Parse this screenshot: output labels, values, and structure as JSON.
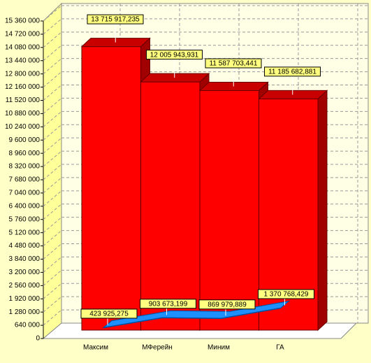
{
  "chart_data": {
    "type": "bar",
    "categories": [
      "Максим",
      "МФерейн",
      "Миним",
      "ГА"
    ],
    "series": [
      {
        "type": "bar",
        "color": "#ff0000",
        "values": [
          13715917.235,
          12005943.931,
          11587703.441,
          11185682.881
        ],
        "value_labels": [
          "13 715 917,235",
          "12 005 943,931",
          "11 587 703,441",
          "11 185 682,881"
        ]
      },
      {
        "type": "line",
        "color": "#1e8fff",
        "values": [
          423925.275,
          903673.199,
          869979.889,
          1370768.429
        ],
        "value_labels": [
          "423 925,275",
          "903 673,199",
          "869 979,889",
          "1 370 768,429"
        ]
      }
    ],
    "ylim": [
      0,
      15360000
    ],
    "yticks": [
      0,
      {
        "value": 640000,
        "label": "640 000"
      },
      {
        "value": 1280000,
        "label": "1 280 000"
      },
      {
        "value": 1920000,
        "label": "1 920 000"
      },
      {
        "value": 2560000,
        "label": "2 560 000"
      },
      {
        "value": 3200000,
        "label": "3 200 000"
      },
      {
        "value": 3840000,
        "label": "3 840 000"
      },
      {
        "value": 4480000,
        "label": "4 480 000"
      },
      {
        "value": 5120000,
        "label": "5 120 000"
      },
      {
        "value": 5760000,
        "label": "5 760 000"
      },
      {
        "value": 6400000,
        "label": "6 400 000"
      },
      {
        "value": 7040000,
        "label": "7 040 000"
      },
      {
        "value": 7680000,
        "label": "7 680 000"
      },
      {
        "value": 8320000,
        "label": "8 320 000"
      },
      {
        "value": 8960000,
        "label": "8 960 000"
      },
      {
        "value": 9600000,
        "label": "9 600 000"
      },
      {
        "value": 10240000,
        "label": "10 240 000"
      },
      {
        "value": 10880000,
        "label": "10 880 000"
      },
      {
        "value": 11520000,
        "label": "11 520 000"
      },
      {
        "value": 12160000,
        "label": "12 160 000"
      },
      {
        "value": 12800000,
        "label": "12 800 000"
      },
      {
        "value": 13440000,
        "label": "13 440 000"
      },
      {
        "value": 14080000,
        "label": "14 080 000"
      },
      {
        "value": 14720000,
        "label": "14 720 000"
      },
      {
        "value": 15360000,
        "label": "15 360 000"
      }
    ],
    "grid": true
  }
}
